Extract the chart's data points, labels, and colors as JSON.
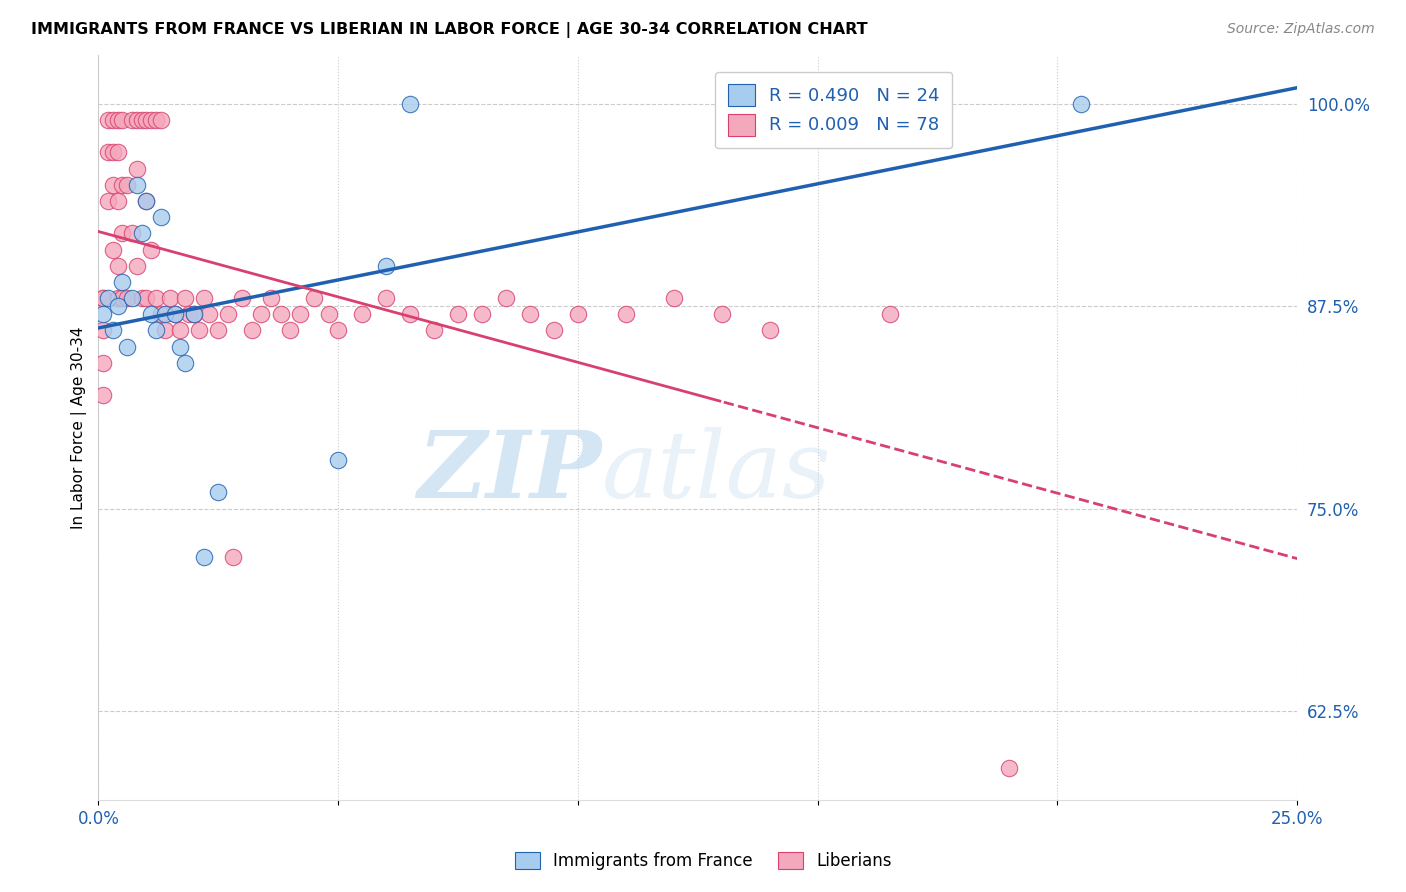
{
  "title": "IMMIGRANTS FROM FRANCE VS LIBERIAN IN LABOR FORCE | AGE 30-34 CORRELATION CHART",
  "source": "Source: ZipAtlas.com",
  "ylabel": "In Labor Force | Age 30-34",
  "xlim": [
    0.0,
    0.25
  ],
  "ylim": [
    0.57,
    1.03
  ],
  "xticks": [
    0.0,
    0.05,
    0.1,
    0.15,
    0.2,
    0.25
  ],
  "xticklabels": [
    "0.0%",
    "",
    "",
    "",
    "",
    "25.0%"
  ],
  "yticks": [
    0.625,
    0.75,
    0.875,
    1.0
  ],
  "yticklabels": [
    "62.5%",
    "75.0%",
    "87.5%",
    "100.0%"
  ],
  "legend_R_france": "R = 0.490",
  "legend_N_france": "N = 24",
  "legend_R_liberian": "R = 0.009",
  "legend_N_liberian": "N = 78",
  "france_color": "#A8CCEE",
  "liberian_color": "#F4A8BC",
  "france_trend_color": "#2060B0",
  "liberian_trend_color": "#D84070",
  "watermark_zip": "ZIP",
  "watermark_atlas": "atlas",
  "france_x": [
    0.001,
    0.002,
    0.003,
    0.004,
    0.005,
    0.006,
    0.007,
    0.008,
    0.009,
    0.01,
    0.011,
    0.012,
    0.013,
    0.014,
    0.016,
    0.017,
    0.018,
    0.02,
    0.022,
    0.025,
    0.05,
    0.06,
    0.065,
    0.205
  ],
  "france_y": [
    0.87,
    0.88,
    0.86,
    0.875,
    0.89,
    0.85,
    0.88,
    0.95,
    0.92,
    0.94,
    0.87,
    0.86,
    0.93,
    0.87,
    0.87,
    0.85,
    0.84,
    0.87,
    0.72,
    0.76,
    0.78,
    0.9,
    1.0,
    1.0
  ],
  "liberian_x": [
    0.001,
    0.001,
    0.001,
    0.001,
    0.001,
    0.002,
    0.002,
    0.002,
    0.003,
    0.003,
    0.003,
    0.003,
    0.004,
    0.004,
    0.004,
    0.004,
    0.004,
    0.005,
    0.005,
    0.005,
    0.005,
    0.006,
    0.006,
    0.007,
    0.007,
    0.008,
    0.008,
    0.008,
    0.009,
    0.009,
    0.01,
    0.01,
    0.01,
    0.011,
    0.011,
    0.012,
    0.012,
    0.013,
    0.013,
    0.014,
    0.015,
    0.016,
    0.017,
    0.018,
    0.019,
    0.02,
    0.021,
    0.022,
    0.023,
    0.025,
    0.027,
    0.028,
    0.03,
    0.032,
    0.034,
    0.036,
    0.038,
    0.04,
    0.042,
    0.045,
    0.048,
    0.05,
    0.055,
    0.06,
    0.065,
    0.07,
    0.075,
    0.08,
    0.085,
    0.09,
    0.095,
    0.1,
    0.11,
    0.12,
    0.13,
    0.14,
    0.165,
    0.19
  ],
  "liberian_y": [
    0.88,
    0.86,
    0.84,
    0.82,
    0.88,
    0.99,
    0.97,
    0.94,
    0.99,
    0.97,
    0.95,
    0.91,
    0.99,
    0.97,
    0.94,
    0.9,
    0.88,
    0.99,
    0.95,
    0.92,
    0.88,
    0.95,
    0.88,
    0.99,
    0.92,
    0.99,
    0.96,
    0.9,
    0.99,
    0.88,
    0.99,
    0.94,
    0.88,
    0.99,
    0.91,
    0.99,
    0.88,
    0.99,
    0.87,
    0.86,
    0.88,
    0.87,
    0.86,
    0.88,
    0.87,
    0.87,
    0.86,
    0.88,
    0.87,
    0.86,
    0.87,
    0.72,
    0.88,
    0.86,
    0.87,
    0.88,
    0.87,
    0.86,
    0.87,
    0.88,
    0.87,
    0.86,
    0.87,
    0.88,
    0.87,
    0.86,
    0.87,
    0.87,
    0.88,
    0.87,
    0.86,
    0.87,
    0.87,
    0.88,
    0.87,
    0.86,
    0.87,
    0.59
  ]
}
